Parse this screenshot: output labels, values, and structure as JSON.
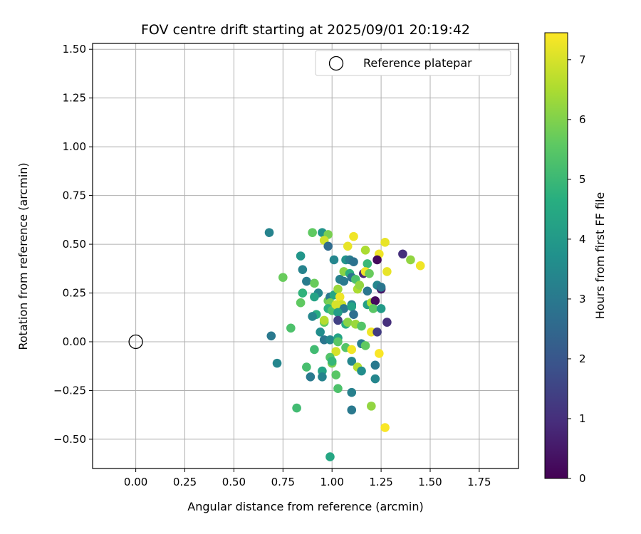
{
  "chart_data": {
    "type": "scatter",
    "title": "FOV centre drift starting at 2025/09/01 20:19:42",
    "xlabel": "Angular distance from reference (arcmin)",
    "ylabel": "Rotation from reference (arcmin)",
    "xlim": [
      -0.22,
      1.95
    ],
    "ylim": [
      -0.65,
      1.53
    ],
    "x_ticks": [
      0.0,
      0.25,
      0.5,
      0.75,
      1.0,
      1.25,
      1.5,
      1.75
    ],
    "x_tick_labels": [
      "0.00",
      "0.25",
      "0.50",
      "0.75",
      "1.00",
      "1.25",
      "1.50",
      "1.75"
    ],
    "y_ticks": [
      -0.5,
      -0.25,
      0.0,
      0.25,
      0.5,
      0.75,
      1.0,
      1.25,
      1.5
    ],
    "y_tick_labels": [
      "−0.50",
      "−0.25",
      "0.00",
      "0.25",
      "0.50",
      "0.75",
      "1.00",
      "1.25",
      "1.50"
    ],
    "grid": true,
    "legend": {
      "placement": "top-right",
      "entries": [
        "Reference platepar"
      ]
    },
    "reference_point": {
      "x": 0.0,
      "y": 0.0
    },
    "colorbar": {
      "label": "Hours from first FF file",
      "colormap": "viridis",
      "range": [
        0,
        7.45
      ],
      "ticks": [
        0,
        1,
        2,
        3,
        4,
        5,
        6,
        7
      ],
      "tick_labels": [
        "0",
        "1",
        "2",
        "3",
        "4",
        "5",
        "6",
        "7"
      ]
    },
    "points": [
      {
        "x": 0.68,
        "y": 0.56,
        "c": 3.3
      },
      {
        "x": 0.9,
        "y": 0.56,
        "c": 5.6
      },
      {
        "x": 0.95,
        "y": 0.56,
        "c": 3.8
      },
      {
        "x": 0.98,
        "y": 0.55,
        "c": 5.9
      },
      {
        "x": 0.96,
        "y": 0.52,
        "c": 6.9
      },
      {
        "x": 0.98,
        "y": 0.49,
        "c": 2.6
      },
      {
        "x": 1.11,
        "y": 0.54,
        "c": 7.3
      },
      {
        "x": 1.08,
        "y": 0.49,
        "c": 7.2
      },
      {
        "x": 1.27,
        "y": 0.51,
        "c": 7.2
      },
      {
        "x": 1.24,
        "y": 0.45,
        "c": 7.3
      },
      {
        "x": 1.23,
        "y": 0.42,
        "c": 0.2
      },
      {
        "x": 1.36,
        "y": 0.45,
        "c": 1.0
      },
      {
        "x": 1.4,
        "y": 0.42,
        "c": 6.2
      },
      {
        "x": 1.45,
        "y": 0.39,
        "c": 7.3
      },
      {
        "x": 1.28,
        "y": 0.36,
        "c": 7.2
      },
      {
        "x": 1.17,
        "y": 0.47,
        "c": 6.5
      },
      {
        "x": 1.01,
        "y": 0.42,
        "c": 3.4
      },
      {
        "x": 1.07,
        "y": 0.42,
        "c": 3.8
      },
      {
        "x": 1.09,
        "y": 0.42,
        "c": 3.1
      },
      {
        "x": 1.11,
        "y": 0.41,
        "c": 2.8
      },
      {
        "x": 1.18,
        "y": 0.4,
        "c": 5.0
      },
      {
        "x": 0.84,
        "y": 0.44,
        "c": 3.9
      },
      {
        "x": 0.85,
        "y": 0.37,
        "c": 3.3
      },
      {
        "x": 0.75,
        "y": 0.33,
        "c": 5.7
      },
      {
        "x": 0.87,
        "y": 0.31,
        "c": 3.1
      },
      {
        "x": 0.91,
        "y": 0.3,
        "c": 5.7
      },
      {
        "x": 0.93,
        "y": 0.25,
        "c": 3.4
      },
      {
        "x": 0.85,
        "y": 0.25,
        "c": 4.8
      },
      {
        "x": 0.91,
        "y": 0.23,
        "c": 4.3
      },
      {
        "x": 0.84,
        "y": 0.2,
        "c": 5.6
      },
      {
        "x": 0.98,
        "y": 0.21,
        "c": 5.7
      },
      {
        "x": 0.99,
        "y": 0.23,
        "c": 3.0
      },
      {
        "x": 1.01,
        "y": 0.24,
        "c": 4.4
      },
      {
        "x": 1.03,
        "y": 0.27,
        "c": 6.3
      },
      {
        "x": 1.04,
        "y": 0.32,
        "c": 3.2
      },
      {
        "x": 1.06,
        "y": 0.31,
        "c": 3.0
      },
      {
        "x": 1.06,
        "y": 0.36,
        "c": 6.1
      },
      {
        "x": 1.09,
        "y": 0.35,
        "c": 4.7
      },
      {
        "x": 1.1,
        "y": 0.33,
        "c": 2.8
      },
      {
        "x": 1.12,
        "y": 0.32,
        "c": 5.3
      },
      {
        "x": 1.13,
        "y": 0.27,
        "c": 6.5
      },
      {
        "x": 1.14,
        "y": 0.29,
        "c": 6.2
      },
      {
        "x": 1.16,
        "y": 0.35,
        "c": 0.8
      },
      {
        "x": 1.17,
        "y": 0.36,
        "c": 7.3
      },
      {
        "x": 1.19,
        "y": 0.35,
        "c": 5.7
      },
      {
        "x": 1.18,
        "y": 0.26,
        "c": 2.9
      },
      {
        "x": 1.23,
        "y": 0.29,
        "c": 3.4
      },
      {
        "x": 1.25,
        "y": 0.27,
        "c": 0.5
      },
      {
        "x": 1.25,
        "y": 0.28,
        "c": 2.9
      },
      {
        "x": 1.04,
        "y": 0.23,
        "c": 7.3
      },
      {
        "x": 1.05,
        "y": 0.19,
        "c": 6.9
      },
      {
        "x": 1.04,
        "y": 0.17,
        "c": 6.6
      },
      {
        "x": 1.06,
        "y": 0.17,
        "c": 3.0
      },
      {
        "x": 1.1,
        "y": 0.19,
        "c": 3.3
      },
      {
        "x": 1.1,
        "y": 0.18,
        "c": 4.3
      },
      {
        "x": 1.11,
        "y": 0.14,
        "c": 2.7
      },
      {
        "x": 1.18,
        "y": 0.19,
        "c": 4.2
      },
      {
        "x": 1.2,
        "y": 0.2,
        "c": 6.5
      },
      {
        "x": 1.22,
        "y": 0.21,
        "c": 0.2
      },
      {
        "x": 1.21,
        "y": 0.17,
        "c": 5.5
      },
      {
        "x": 1.25,
        "y": 0.17,
        "c": 4.0
      },
      {
        "x": 0.99,
        "y": 0.2,
        "c": 5.9
      },
      {
        "x": 0.98,
        "y": 0.17,
        "c": 4.7
      },
      {
        "x": 1.0,
        "y": 0.16,
        "c": 5.3
      },
      {
        "x": 1.02,
        "y": 0.19,
        "c": 7.0
      },
      {
        "x": 1.03,
        "y": 0.15,
        "c": 4.1
      },
      {
        "x": 0.92,
        "y": 0.14,
        "c": 4.6
      },
      {
        "x": 0.9,
        "y": 0.13,
        "c": 3.4
      },
      {
        "x": 0.96,
        "y": 0.1,
        "c": 5.6
      },
      {
        "x": 0.96,
        "y": 0.11,
        "c": 6.6
      },
      {
        "x": 1.03,
        "y": 0.11,
        "c": 1.4
      },
      {
        "x": 1.07,
        "y": 0.09,
        "c": 4.6
      },
      {
        "x": 1.08,
        "y": 0.1,
        "c": 6.1
      },
      {
        "x": 1.12,
        "y": 0.09,
        "c": 6.3
      },
      {
        "x": 1.15,
        "y": 0.08,
        "c": 5.4
      },
      {
        "x": 1.28,
        "y": 0.1,
        "c": 1.0
      },
      {
        "x": 1.2,
        "y": 0.05,
        "c": 7.3
      },
      {
        "x": 1.23,
        "y": 0.05,
        "c": 1.3
      },
      {
        "x": 0.94,
        "y": 0.05,
        "c": 3.6
      },
      {
        "x": 0.96,
        "y": 0.01,
        "c": 2.9
      },
      {
        "x": 0.99,
        "y": 0.01,
        "c": 3.4
      },
      {
        "x": 1.03,
        "y": 0.02,
        "c": 4.3
      },
      {
        "x": 1.03,
        "y": 0.0,
        "c": 5.5
      },
      {
        "x": 0.69,
        "y": 0.03,
        "c": 3.0
      },
      {
        "x": 0.79,
        "y": 0.07,
        "c": 5.3
      },
      {
        "x": 1.07,
        "y": -0.03,
        "c": 5.4
      },
      {
        "x": 1.1,
        "y": -0.04,
        "c": 7.3
      },
      {
        "x": 1.15,
        "y": -0.01,
        "c": 3.1
      },
      {
        "x": 1.17,
        "y": -0.02,
        "c": 5.6
      },
      {
        "x": 1.24,
        "y": -0.06,
        "c": 7.4
      },
      {
        "x": 1.02,
        "y": -0.05,
        "c": 7.0
      },
      {
        "x": 0.91,
        "y": -0.04,
        "c": 5.1
      },
      {
        "x": 0.72,
        "y": -0.11,
        "c": 3.4
      },
      {
        "x": 0.87,
        "y": -0.13,
        "c": 5.2
      },
      {
        "x": 0.99,
        "y": -0.08,
        "c": 5.4
      },
      {
        "x": 1.0,
        "y": -0.11,
        "c": 5.9
      },
      {
        "x": 1.0,
        "y": -0.1,
        "c": 4.9
      },
      {
        "x": 1.1,
        "y": -0.1,
        "c": 3.4
      },
      {
        "x": 1.13,
        "y": -0.13,
        "c": 6.6
      },
      {
        "x": 1.15,
        "y": -0.15,
        "c": 3.6
      },
      {
        "x": 1.22,
        "y": -0.12,
        "c": 3.0
      },
      {
        "x": 0.89,
        "y": -0.18,
        "c": 3.0
      },
      {
        "x": 0.95,
        "y": -0.15,
        "c": 4.3
      },
      {
        "x": 0.95,
        "y": -0.18,
        "c": 3.3
      },
      {
        "x": 1.02,
        "y": -0.17,
        "c": 5.5
      },
      {
        "x": 1.03,
        "y": -0.24,
        "c": 5.3
      },
      {
        "x": 1.1,
        "y": -0.26,
        "c": 3.2
      },
      {
        "x": 1.22,
        "y": -0.19,
        "c": 3.4
      },
      {
        "x": 0.82,
        "y": -0.34,
        "c": 5.1
      },
      {
        "x": 1.1,
        "y": -0.35,
        "c": 3.0
      },
      {
        "x": 1.2,
        "y": -0.33,
        "c": 6.2
      },
      {
        "x": 1.27,
        "y": -0.44,
        "c": 7.4
      },
      {
        "x": 0.99,
        "y": -0.59,
        "c": 4.4
      }
    ]
  }
}
